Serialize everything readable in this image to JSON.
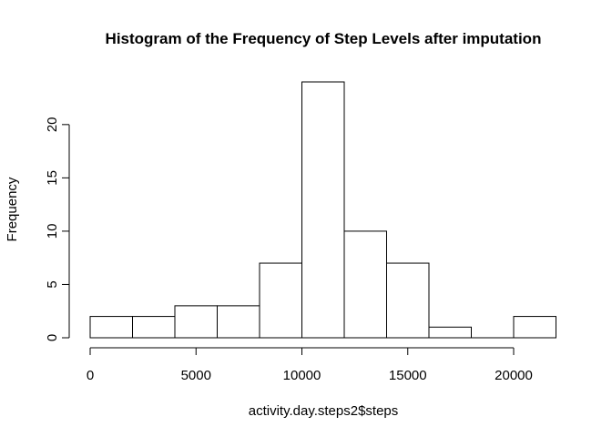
{
  "chart_data": {
    "type": "bar",
    "subtype": "histogram",
    "title": "Histogram of the Frequency of Step Levels after imputation",
    "xlabel": "activity.day.steps2$steps",
    "ylabel": "Frequency",
    "xlim": [
      0,
      22000
    ],
    "ylim": [
      0,
      24
    ],
    "bins": [
      {
        "start": 0,
        "end": 2000,
        "count": 2
      },
      {
        "start": 2000,
        "end": 4000,
        "count": 2
      },
      {
        "start": 4000,
        "end": 6000,
        "count": 3
      },
      {
        "start": 6000,
        "end": 8000,
        "count": 3
      },
      {
        "start": 8000,
        "end": 10000,
        "count": 7
      },
      {
        "start": 10000,
        "end": 12000,
        "count": 24
      },
      {
        "start": 12000,
        "end": 14000,
        "count": 10
      },
      {
        "start": 14000,
        "end": 16000,
        "count": 7
      },
      {
        "start": 16000,
        "end": 18000,
        "count": 1
      },
      {
        "start": 18000,
        "end": 20000,
        "count": 0
      },
      {
        "start": 20000,
        "end": 22000,
        "count": 2
      }
    ],
    "x_ticks": [
      0,
      5000,
      10000,
      15000,
      20000
    ],
    "x_tick_labels": [
      "0",
      "5000",
      "10000",
      "15000",
      "20000"
    ],
    "y_ticks": [
      0,
      5,
      10,
      15,
      20
    ],
    "y_tick_labels": [
      "0",
      "5",
      "10",
      "15",
      "20"
    ],
    "grid": false,
    "bar_fill": "#ffffff",
    "bar_stroke": "#000000"
  }
}
